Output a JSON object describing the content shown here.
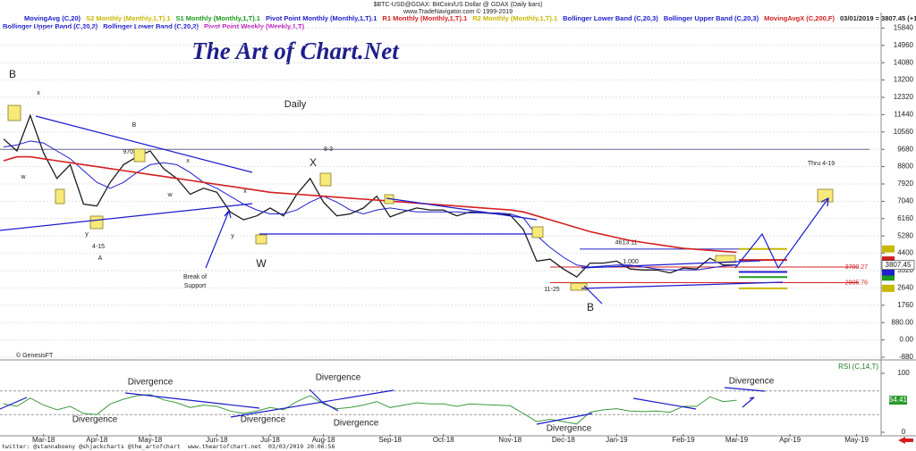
{
  "chart_data": {
    "type": "line",
    "header": {
      "title": "$BTC-USD@GDAX:  BitCoin/US Dollar @ GDAX  (Daily bars)",
      "source": "www.TradeNavigator.com © 1999-2019",
      "quote": "03/01/2019 = 3807.45 (+15.31)"
    },
    "brand": "The Art of Chart.Net",
    "subtitle": "Daily",
    "header_labels": [
      {
        "text": "S2 Monthly (Monthly,1,T).1",
        "color": "#c9b800",
        "value": 2620
      },
      {
        "text": "S1 Monthly (Monthly,1,T).1",
        "color": "#1d9a1d",
        "value": 3190
      },
      {
        "text": "Pivot Point Monthly (Monthly,1,T).1",
        "color": "#2020cc",
        "value": 3450
      },
      {
        "text": "R1 Monthly (Monthly,1,T).1",
        "color": "#d42020",
        "value": 4060
      },
      {
        "text": "R2 Monthly (Monthly,1,T).1",
        "color": "#c9b800",
        "value": 4620
      },
      {
        "text": "Bollinger Lower Band (C,20,3)",
        "color": "#2020cc"
      },
      {
        "text": "Bollinger Upper Band (C,20,3)",
        "color": "#2020cc"
      },
      {
        "text": "Bollinger Upper Band (C,20,2)",
        "color": "#2020cc"
      },
      {
        "text": "Bollinger Lower Band (C,20,2)",
        "color": "#2020cc"
      },
      {
        "text": "Pivot Point Weekly (Weekly,1,T)",
        "color": "#c020c0"
      }
    ],
    "categories": [
      null,
      null,
      null,
      "Mar-18",
      null,
      null,
      null,
      "Apr-18",
      null,
      null,
      null,
      "May-18",
      null,
      null,
      null,
      null,
      "Jun-18",
      null,
      null,
      null,
      "Jul-18",
      null,
      null,
      null,
      "Aug-18",
      null,
      null,
      null,
      null,
      "Sep-18",
      null,
      null,
      null,
      "Oct-18",
      null,
      null,
      null,
      null,
      "Nov-18",
      null,
      null,
      null,
      "Dec-18",
      null,
      null,
      null,
      "Jan-19",
      null,
      null,
      null,
      null,
      "Feb-19",
      null,
      null,
      null,
      "Mar-19",
      null,
      null,
      null,
      "Apr-19",
      null,
      null,
      null,
      null,
      "May-19",
      null
    ],
    "series": [
      {
        "name": "$BTC/USD",
        "color": "#1c1c1c",
        "values": [
          10200,
          9600,
          11400,
          9500,
          8200,
          8900,
          6900,
          6800,
          8000,
          8900,
          9300,
          9600,
          8700,
          8200,
          7400,
          7700,
          7500,
          6500,
          6100,
          6300,
          6700,
          6300,
          7400,
          8200,
          7000,
          6300,
          6400,
          6700,
          7300,
          6250,
          6500,
          6700,
          6600,
          6600,
          6300,
          6500,
          6450,
          6400,
          6350,
          5600,
          4000,
          4100,
          3600,
          3200,
          3900,
          3900,
          4000,
          3600,
          3550,
          3550,
          3400,
          3650,
          3600,
          4150,
          3800,
          3807.45,
          null,
          null,
          null,
          null,
          null,
          null,
          null,
          null,
          null,
          null
        ]
      },
      {
        "name": "MovingAvg (C,20)",
        "color": "#2020cc",
        "values": [
          9800,
          9900,
          10100,
          10000,
          9600,
          9200,
          8600,
          8000,
          7700,
          8000,
          8500,
          8900,
          9000,
          8900,
          8500,
          8000,
          7700,
          7300,
          6900,
          6600,
          6400,
          6400,
          6600,
          7000,
          7300,
          7000,
          6600,
          6400,
          6600,
          6700,
          6600,
          6500,
          6500,
          6500,
          6500,
          6450,
          6450,
          6450,
          6400,
          6200,
          5300,
          4700,
          4200,
          3800,
          3700,
          3750,
          3800,
          3800,
          3700,
          3600,
          3550,
          3550,
          3550,
          3650,
          3750,
          3800,
          null,
          null,
          null,
          null,
          null,
          null,
          null,
          null,
          null,
          null
        ]
      },
      {
        "name": "MovingAvgX (C,200,F)",
        "color": "#d42020",
        "values": [
          9100,
          9300,
          9300,
          9200,
          9100,
          9000,
          8900,
          8800,
          8700,
          8600,
          8500,
          8400,
          8300,
          8200,
          8100,
          8000,
          7900,
          7800,
          7700,
          7600,
          7500,
          7450,
          7400,
          7350,
          7300,
          7250,
          7200,
          7150,
          7100,
          7050,
          7000,
          6950,
          6900,
          6850,
          6800,
          6750,
          6700,
          6650,
          6600,
          6500,
          6300,
          6100,
          5900,
          5700,
          5500,
          5350,
          5200,
          5050,
          4950,
          4850,
          4750,
          4650,
          4600,
          4550,
          4500,
          4450,
          null,
          null,
          null,
          null,
          null,
          null,
          null,
          null,
          null,
          null
        ]
      }
    ],
    "ylim": [
      -880,
      16720
    ],
    "yticks": [
      15840,
      14960,
      14080,
      13200,
      12320,
      11440,
      10560,
      9680,
      8800,
      7920,
      7040,
      6160,
      5280,
      4400,
      3520,
      2640,
      1760,
      {
        "value": 880,
        "label": "880.00"
      },
      {
        "value": 0,
        "label": "0.00"
      },
      -880
    ],
    "grid": true,
    "levels": [
      {
        "value": 9680,
        "color": "#6a6a90"
      },
      {
        "value": 3700.27,
        "color": "#d42020"
      },
      {
        "value": 2905.76,
        "color": "#d42020"
      },
      {
        "value": 4613.11,
        "color": "#2020cc"
      }
    ],
    "annotations": [
      "B",
      "x",
      "w",
      "y",
      "4-15",
      "A",
      "9702.60",
      "B",
      "x",
      "w",
      "x",
      "y",
      "Break of",
      "Support",
      "W",
      "8-3",
      "X",
      "Thru 4-19",
      "B",
      "11-25",
      "1.000",
      "© GenesisFT"
    ],
    "rsi": {
      "name": "RSI (C,14,T)",
      "color": "#3c9a3c",
      "ylim": [
        0,
        100
      ],
      "yticks": [
        100,
        0
      ],
      "guides": [
        70,
        30
      ],
      "values": [
        48,
        44,
        58,
        46,
        38,
        44,
        32,
        30,
        48,
        56,
        62,
        64,
        55,
        50,
        42,
        46,
        44,
        36,
        32,
        36,
        42,
        38,
        52,
        62,
        48,
        40,
        42,
        46,
        52,
        42,
        46,
        50,
        48,
        48,
        44,
        48,
        47,
        46,
        45,
        32,
        18,
        22,
        18,
        14,
        34,
        38,
        40,
        36,
        35,
        36,
        34,
        44,
        44,
        60,
        52,
        54.41,
        null,
        null,
        null,
        null,
        null,
        null,
        null,
        null,
        null,
        null
      ],
      "annotations": [
        "Divergence",
        "Divergence",
        "Divergence",
        "Divergence",
        "Divergence",
        "Divergence",
        "Divergence"
      ]
    },
    "footer": [
      "twitter: @stannaboeny @shjackcharts @the_artofchart",
      "www.theartofchart.net",
      "03/03/2019 20:06:56"
    ]
  }
}
